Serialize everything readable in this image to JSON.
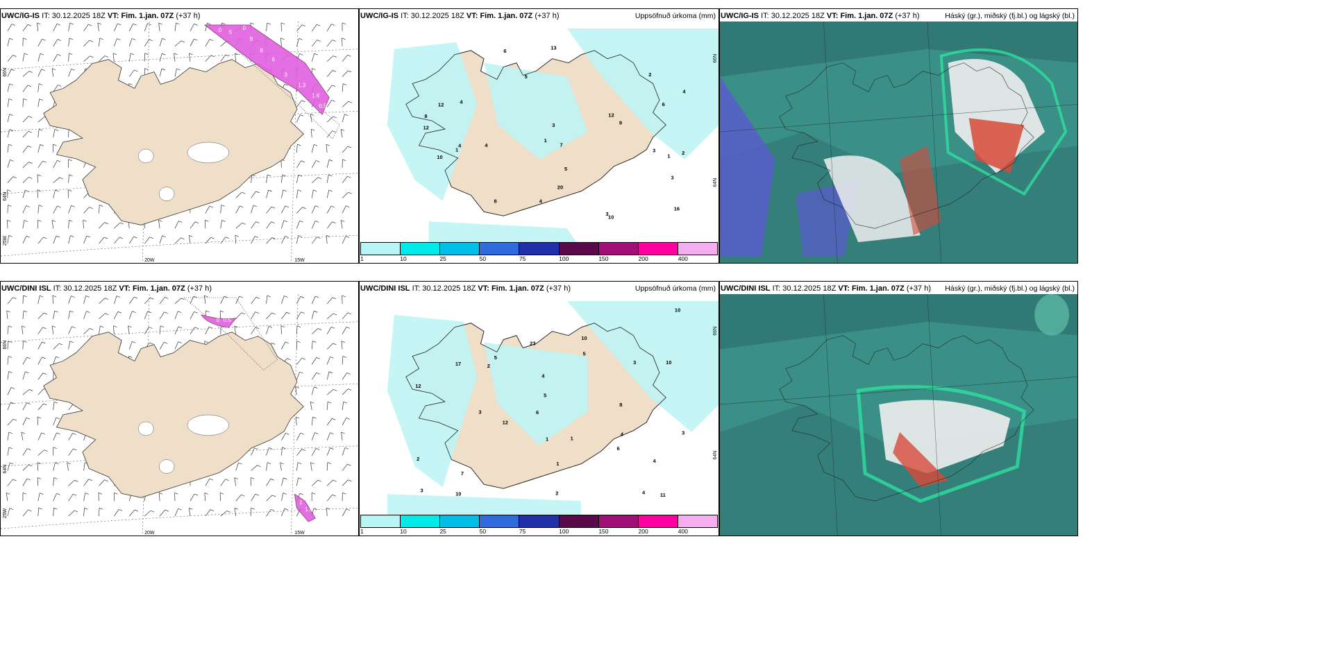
{
  "panels": [
    {
      "model": "UWC/IG-IS",
      "it_label": "IT:",
      "it_value": "30.12.2025 18Z",
      "vt_label": "VT:",
      "vt_value": "Fim. 1.jan. 07Z",
      "lead": "(+37 h)",
      "right_title": "",
      "lat_labels": [
        "66N",
        "64N"
      ],
      "lon_labels": [
        "20W",
        "15W"
      ],
      "corner_label": "25W"
    },
    {
      "model": "UWC/IG-IS",
      "it_label": "IT:",
      "it_value": "30.12.2025 18Z",
      "vt_label": "VT:",
      "vt_value": "Fim. 1.jan. 07Z",
      "lead": "(+37 h)",
      "right_title": "Uppsöfnuð úrkoma (mm)",
      "lat_labels": [
        "66N",
        "64N"
      ]
    },
    {
      "model": "UWC/IG-IS",
      "it_label": "IT:",
      "it_value": "30.12.2025 18Z",
      "vt_label": "VT:",
      "vt_value": "Fim. 1.jan. 07Z",
      "lead": "(+37 h)",
      "right_title": "Háský (gr.), miðský (fj.bl.) og lágský (bl.)"
    },
    {
      "model": "UWC/DINI ISL",
      "it_label": "IT:",
      "it_value": "30.12.2025 18Z",
      "vt_label": "VT:",
      "vt_value": "Fim. 1.jan. 07Z",
      "lead": "(+37 h)",
      "right_title": "",
      "lat_labels": [
        "66N",
        "64N"
      ],
      "lon_labels": [
        "20W",
        "15W"
      ],
      "corner_label": "25W"
    },
    {
      "model": "UWC/DINI ISL",
      "it_label": "IT:",
      "it_value": "30.12.2025 18Z",
      "vt_label": "VT:",
      "vt_value": "Fim. 1.jan. 07Z",
      "lead": "(+37 h)",
      "right_title": "Uppsöfnuð úrkoma (mm)",
      "lat_labels": [
        "66N",
        "64N"
      ]
    },
    {
      "model": "UWC/DINI ISL",
      "it_label": "IT:",
      "it_value": "30.12.2025 18Z",
      "vt_label": "VT:",
      "vt_value": "Fim. 1.jan. 07Z",
      "lead": "(+37 h)",
      "right_title": "Háský (gr.), miðský (fj.bl.) og lágský (bl.)"
    }
  ],
  "colorbar": {
    "colors": [
      "#b8f6f6",
      "#00eaea",
      "#00bfe6",
      "#2e6bdc",
      "#2030a8",
      "#5a0a4a",
      "#a01078",
      "#ff00a0",
      "#f4aef0"
    ],
    "ticks": [
      "1",
      "10",
      "25",
      "50",
      "75",
      "100",
      "150",
      "200",
      "400"
    ]
  },
  "precip_values": {
    "top": [
      "3",
      "3",
      "2",
      "6",
      "5",
      "3",
      "4",
      "4",
      "7",
      "4",
      "13",
      "12",
      "9",
      "10",
      "20",
      "12",
      "10",
      "6",
      "16",
      "8",
      "1",
      "3",
      "1",
      "4",
      "4",
      "2",
      "12",
      "8",
      "5",
      "1"
    ],
    "bottom": [
      "4",
      "11",
      "4",
      "2",
      "8",
      "6",
      "12",
      "5",
      "4",
      "3",
      "23",
      "17",
      "10",
      "10",
      "4",
      "6",
      "5",
      "7",
      "3",
      "10",
      "1",
      "5",
      "12",
      "10",
      "2",
      "3",
      "1",
      "1",
      "2",
      "3"
    ]
  },
  "snow_values_top": [
    "0",
    "5",
    "0",
    "9",
    "8",
    "6",
    "3",
    "1.3",
    "1.6",
    "0.5"
  ],
  "snow_values_bottom": [
    "0",
    "0.5",
    "1",
    "1.5"
  ],
  "colors": {
    "land": "#efdfc8",
    "sea": "#ffffff",
    "precip_light": "#bff4f4",
    "snow": "#e060e0",
    "snow_dark": "#7a2a6a",
    "cloud_base": "#3a8f86",
    "cloud_high": "#2e6f6e",
    "cloud_mid": "#5bb8a4",
    "cloud_low": "#5a5ad0",
    "cloud_red": "#d84a3a",
    "cloud_white": "#f0f0f0",
    "cloud_green": "#30e0a0"
  }
}
